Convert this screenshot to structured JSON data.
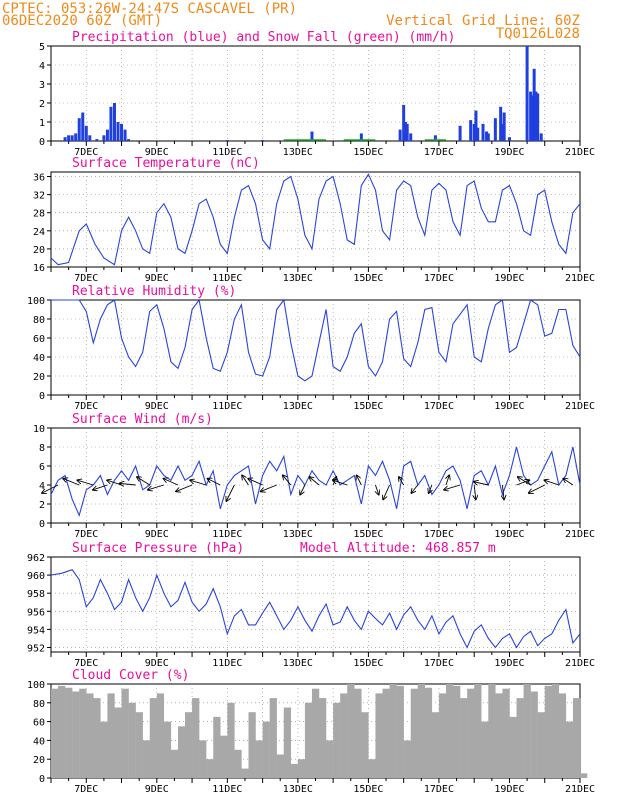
{
  "header": {
    "line1": "CPTEC:   053:26W-24:47S   CASCAVEL (PR)",
    "line2": "06DEC2020 60Z (GMT)",
    "grid_note": "Vertical Grid Line: 60Z",
    "code": "TQ0126L028"
  },
  "colors": {
    "header": "#f08a1a",
    "title": "#e8109c",
    "precip": "#1f3fe0",
    "snow": "#22aa22",
    "line": "#2a44dd",
    "cloud": "#a8a8a8",
    "wind_arrow": "#000000"
  },
  "x_axis": {
    "start_day": 6,
    "end_day": 21,
    "tick_labels": [
      "7DEC",
      "9DEC",
      "11DEC",
      "13DEC",
      "15DEC",
      "17DEC",
      "19DEC",
      "21DEC"
    ],
    "tick_days": [
      7,
      9,
      11,
      13,
      15,
      17,
      19,
      21
    ]
  },
  "chart_data": [
    {
      "type": "bar",
      "id": "precip",
      "title": "Precipitation (blue) and Snow Fall (green) (mm/h)",
      "ylim": [
        0,
        5
      ],
      "yticks": [
        0,
        1,
        2,
        3,
        4,
        5
      ],
      "x": [
        6.4,
        6.5,
        6.6,
        6.7,
        6.8,
        6.9,
        7.0,
        7.1,
        7.3,
        7.5,
        7.6,
        7.7,
        7.8,
        7.9,
        8.0,
        8.1,
        8.2,
        11.0,
        12.0,
        13.4,
        14.8,
        15.9,
        16.0,
        16.05,
        16.1,
        16.2,
        16.9,
        17.6,
        17.9,
        18.0,
        18.05,
        18.1,
        18.25,
        18.35,
        18.4,
        18.6,
        18.75,
        18.8,
        18.85,
        19.0,
        19.5,
        19.6,
        19.65,
        19.7,
        19.75,
        19.8,
        19.9
      ],
      "values": [
        0.2,
        0.3,
        0.3,
        0.4,
        1.2,
        1.5,
        0.8,
        0.3,
        0.1,
        0.3,
        0.6,
        1.8,
        2.0,
        1.0,
        0.9,
        0.6,
        0.1,
        0.05,
        0.05,
        0.5,
        0.4,
        0.6,
        1.9,
        1.0,
        0.9,
        0.4,
        0.3,
        0.8,
        1.1,
        0.9,
        1.6,
        0.7,
        0.9,
        0.5,
        0.4,
        1.2,
        1.8,
        0.9,
        1.5,
        0.2,
        5.0,
        2.6,
        2.4,
        3.8,
        2.6,
        2.5,
        0.4
      ],
      "snow": []
    },
    {
      "type": "line",
      "id": "temperature",
      "title": "Surface Temperature (nC)",
      "ylim": [
        16,
        37
      ],
      "yticks": [
        16,
        20,
        24,
        28,
        32,
        36
      ],
      "x": [
        6.0,
        6.2,
        6.5,
        6.8,
        7.0,
        7.25,
        7.5,
        7.8,
        8.0,
        8.2,
        8.4,
        8.6,
        8.8,
        9.0,
        9.2,
        9.4,
        9.6,
        9.8,
        10.0,
        10.2,
        10.4,
        10.6,
        10.8,
        11.0,
        11.2,
        11.4,
        11.6,
        11.8,
        12.0,
        12.2,
        12.4,
        12.6,
        12.8,
        13.0,
        13.2,
        13.4,
        13.6,
        13.8,
        14.0,
        14.2,
        14.4,
        14.6,
        14.8,
        15.0,
        15.2,
        15.4,
        15.6,
        15.8,
        16.0,
        16.2,
        16.4,
        16.6,
        16.8,
        17.0,
        17.2,
        17.4,
        17.6,
        17.8,
        18.0,
        18.2,
        18.4,
        18.6,
        18.8,
        19.0,
        19.2,
        19.4,
        19.6,
        19.8,
        20.0,
        20.2,
        20.4,
        20.6,
        20.8,
        21.0
      ],
      "values": [
        18,
        16.5,
        17,
        24,
        25.5,
        21,
        18,
        16.5,
        24,
        27,
        24,
        20,
        19,
        28,
        30,
        27,
        20,
        19,
        24,
        30,
        31,
        27,
        21,
        19,
        27,
        33,
        34,
        30,
        22,
        20,
        30,
        35,
        36,
        31,
        23,
        20,
        31,
        35,
        36,
        30,
        22,
        21,
        34,
        36.5,
        33,
        24,
        22,
        33,
        35,
        34,
        27,
        23,
        33,
        34.5,
        33,
        26,
        23,
        34,
        35,
        29,
        26,
        26,
        33,
        34,
        30,
        24,
        23,
        32,
        33,
        26,
        21,
        19,
        28,
        30
      ]
    },
    {
      "type": "line",
      "id": "humidity",
      "title": "Relative Humidity (%)",
      "ylim": [
        0,
        100
      ],
      "yticks": [
        0,
        20,
        40,
        60,
        80,
        100
      ],
      "x": [
        6.0,
        6.3,
        6.6,
        6.8,
        7.0,
        7.2,
        7.4,
        7.6,
        7.8,
        8.0,
        8.2,
        8.4,
        8.6,
        8.8,
        9.0,
        9.2,
        9.4,
        9.6,
        9.8,
        10.0,
        10.2,
        10.4,
        10.6,
        10.8,
        11.0,
        11.2,
        11.4,
        11.6,
        11.8,
        12.0,
        12.2,
        12.4,
        12.6,
        12.8,
        13.0,
        13.2,
        13.4,
        13.6,
        13.8,
        14.0,
        14.2,
        14.4,
        14.6,
        14.8,
        15.0,
        15.2,
        15.4,
        15.6,
        15.8,
        16.0,
        16.2,
        16.4,
        16.6,
        16.8,
        17.0,
        17.2,
        17.4,
        17.6,
        17.8,
        18.0,
        18.2,
        18.4,
        18.6,
        18.8,
        19.0,
        19.2,
        19.4,
        19.6,
        19.8,
        20.0,
        20.2,
        20.4,
        20.6,
        20.8,
        21.0
      ],
      "values": [
        100,
        100,
        100,
        100,
        88,
        55,
        80,
        95,
        100,
        60,
        40,
        30,
        45,
        88,
        95,
        70,
        35,
        28,
        50,
        90,
        100,
        60,
        28,
        25,
        45,
        80,
        95,
        45,
        22,
        20,
        40,
        90,
        100,
        55,
        20,
        15,
        20,
        55,
        90,
        30,
        25,
        40,
        65,
        75,
        30,
        20,
        35,
        80,
        88,
        38,
        30,
        55,
        90,
        92,
        45,
        35,
        75,
        85,
        95,
        40,
        35,
        70,
        95,
        100,
        45,
        50,
        75,
        100,
        95,
        62,
        65,
        90,
        90,
        52,
        40
      ]
    },
    {
      "type": "line",
      "id": "wind",
      "title": "Surface Wind (m/s)",
      "ylim": [
        0,
        10
      ],
      "yticks": [
        0,
        2,
        4,
        6,
        8,
        10
      ],
      "x": [
        6.0,
        6.2,
        6.4,
        6.6,
        6.8,
        7.0,
        7.2,
        7.4,
        7.6,
        7.8,
        8.0,
        8.2,
        8.4,
        8.6,
        8.8,
        9.0,
        9.2,
        9.4,
        9.6,
        9.8,
        10.0,
        10.2,
        10.4,
        10.6,
        10.8,
        11.0,
        11.2,
        11.4,
        11.6,
        11.8,
        12.0,
        12.2,
        12.4,
        12.6,
        12.8,
        13.0,
        13.2,
        13.4,
        13.6,
        13.8,
        14.0,
        14.2,
        14.4,
        14.6,
        14.8,
        15.0,
        15.2,
        15.4,
        15.6,
        15.8,
        16.0,
        16.2,
        16.4,
        16.6,
        16.8,
        17.0,
        17.2,
        17.4,
        17.6,
        17.8,
        18.0,
        18.2,
        18.4,
        18.6,
        18.8,
        19.0,
        19.2,
        19.4,
        19.6,
        19.8,
        20.0,
        20.2,
        20.4,
        20.6,
        20.8,
        21.0
      ],
      "values": [
        3,
        4.5,
        5,
        2.5,
        0.8,
        3.5,
        4,
        5,
        3,
        4.5,
        5.5,
        4.5,
        6,
        3.5,
        4,
        6,
        5,
        4.5,
        6,
        4.5,
        5,
        6.5,
        4,
        5.5,
        1.5,
        4,
        5,
        5.5,
        6,
        2,
        5,
        6.5,
        5.5,
        7,
        3,
        5,
        4,
        5.5,
        4.5,
        4,
        5.5,
        4,
        4.5,
        5,
        2,
        6,
        5,
        6.5,
        4.5,
        1.5,
        6,
        6.5,
        4,
        5,
        3,
        4,
        5.5,
        6,
        4.5,
        1.5,
        5,
        5.5,
        4,
        6,
        3,
        5,
        8,
        5,
        4,
        4.5,
        6,
        7.5,
        4,
        5,
        8,
        4
      ],
      "arrows": [
        {
          "x": 6.2,
          "u": -1.0,
          "v": -0.5
        },
        {
          "x": 6.8,
          "u": -1.0,
          "v": 0.4
        },
        {
          "x": 7.2,
          "u": -1.0,
          "v": 0.3
        },
        {
          "x": 7.6,
          "u": -0.9,
          "v": -0.3
        },
        {
          "x": 8.0,
          "u": -0.9,
          "v": 0.3
        },
        {
          "x": 8.4,
          "u": -1.0,
          "v": 0.1
        },
        {
          "x": 8.8,
          "u": -0.8,
          "v": 0.5
        },
        {
          "x": 9.2,
          "u": -1.0,
          "v": -0.3
        },
        {
          "x": 9.6,
          "u": -0.9,
          "v": 0.4
        },
        {
          "x": 10.0,
          "u": -1.0,
          "v": -0.4
        },
        {
          "x": 10.4,
          "u": -1.0,
          "v": 0.3
        },
        {
          "x": 10.8,
          "u": -0.8,
          "v": 0.4
        },
        {
          "x": 11.2,
          "u": -0.5,
          "v": -1.0
        },
        {
          "x": 11.6,
          "u": -0.4,
          "v": 0.6
        },
        {
          "x": 12.0,
          "u": -0.9,
          "v": 0.4
        },
        {
          "x": 12.4,
          "u": -1.0,
          "v": -0.4
        },
        {
          "x": 12.8,
          "u": -0.5,
          "v": 0.6
        },
        {
          "x": 13.2,
          "u": -0.3,
          "v": -0.6
        },
        {
          "x": 13.6,
          "u": -0.6,
          "v": 0.5
        },
        {
          "x": 14.0,
          "u": 0.2,
          "v": 0.5
        },
        {
          "x": 14.4,
          "u": -0.9,
          "v": 0.3
        },
        {
          "x": 14.8,
          "u": -0.3,
          "v": 0.6
        },
        {
          "x": 15.2,
          "u": 0.2,
          "v": -0.6
        },
        {
          "x": 15.6,
          "u": -0.4,
          "v": -0.9
        },
        {
          "x": 16.0,
          "u": -0.3,
          "v": 0.5
        },
        {
          "x": 16.4,
          "u": -0.4,
          "v": -0.5
        },
        {
          "x": 16.8,
          "u": -0.2,
          "v": -0.5
        },
        {
          "x": 17.2,
          "u": 0.2,
          "v": 0.6
        },
        {
          "x": 17.6,
          "u": -1.0,
          "v": -0.3
        },
        {
          "x": 18.0,
          "u": 0.1,
          "v": -0.9
        },
        {
          "x": 18.4,
          "u": -0.9,
          "v": 0.2
        },
        {
          "x": 18.8,
          "u": 0.1,
          "v": -0.9
        },
        {
          "x": 19.2,
          "u": 0.8,
          "v": 0.3
        },
        {
          "x": 19.6,
          "u": -0.8,
          "v": 0.5
        },
        {
          "x": 20.0,
          "u": -1.0,
          "v": -0.5
        },
        {
          "x": 20.4,
          "u": -0.9,
          "v": 0.3
        },
        {
          "x": 20.8,
          "u": -0.6,
          "v": 0.4
        }
      ]
    },
    {
      "type": "line",
      "id": "pressure",
      "title": "Surface Pressure (hPa)",
      "annotation": "Model Altitude: 468.857 m",
      "ylim": [
        951.5,
        962
      ],
      "yticks": [
        952,
        954,
        956,
        958,
        960,
        962
      ],
      "x": [
        6.0,
        6.3,
        6.6,
        6.8,
        7.0,
        7.2,
        7.4,
        7.6,
        7.8,
        8.0,
        8.2,
        8.4,
        8.6,
        8.8,
        9.0,
        9.2,
        9.4,
        9.6,
        9.8,
        10.0,
        10.2,
        10.4,
        10.6,
        10.8,
        11.0,
        11.2,
        11.4,
        11.6,
        11.8,
        12.0,
        12.2,
        12.4,
        12.6,
        12.8,
        13.0,
        13.2,
        13.4,
        13.6,
        13.8,
        14.0,
        14.2,
        14.4,
        14.6,
        14.8,
        15.0,
        15.2,
        15.4,
        15.6,
        15.8,
        16.0,
        16.2,
        16.4,
        16.6,
        16.8,
        17.0,
        17.2,
        17.4,
        17.6,
        17.8,
        18.0,
        18.2,
        18.4,
        18.6,
        18.8,
        19.0,
        19.2,
        19.4,
        19.6,
        19.8,
        20.0,
        20.2,
        20.4,
        20.6,
        20.8,
        21.0
      ],
      "values": [
        960,
        960.2,
        960.6,
        959.5,
        956.5,
        957.5,
        959.5,
        958,
        956.2,
        957,
        959.5,
        957.5,
        956,
        957.5,
        960,
        958,
        956.5,
        957.2,
        959.2,
        957,
        956,
        956.8,
        958.5,
        956.5,
        953.5,
        955.5,
        956.2,
        954.5,
        954.5,
        955.8,
        957,
        955.5,
        954,
        955,
        956.5,
        955,
        953.8,
        955.5,
        956.8,
        954.5,
        954.8,
        956.5,
        955,
        954,
        956,
        955.2,
        954.5,
        955.8,
        954,
        955.6,
        956.5,
        955,
        954,
        955.5,
        953.5,
        954.8,
        955.5,
        953.5,
        952,
        953.8,
        954.5,
        953,
        952,
        953,
        953.5,
        952,
        953.2,
        953.8,
        952.2,
        953,
        953.5,
        955,
        956.2,
        952.5,
        953.5
      ]
    },
    {
      "type": "area",
      "id": "cloud",
      "title": "Cloud Cover (%)",
      "ylim": [
        0,
        100
      ],
      "yticks": [
        0,
        20,
        40,
        60,
        80,
        100
      ],
      "x": [
        6.0,
        6.2,
        6.4,
        6.6,
        6.8,
        7.0,
        7.2,
        7.4,
        7.6,
        7.8,
        8.0,
        8.2,
        8.4,
        8.6,
        8.8,
        9.0,
        9.2,
        9.4,
        9.6,
        9.8,
        10.0,
        10.2,
        10.4,
        10.6,
        10.8,
        11.0,
        11.2,
        11.4,
        11.6,
        11.8,
        12.0,
        12.2,
        12.4,
        12.6,
        12.8,
        13.0,
        13.2,
        13.4,
        13.6,
        13.8,
        14.0,
        14.2,
        14.4,
        14.6,
        14.8,
        15.0,
        15.2,
        15.4,
        15.6,
        15.8,
        16.0,
        16.2,
        16.4,
        16.6,
        16.8,
        17.0,
        17.2,
        17.4,
        17.6,
        17.8,
        18.0,
        18.2,
        18.4,
        18.6,
        18.8,
        19.0,
        19.2,
        19.4,
        19.6,
        19.8,
        20.0,
        20.2,
        20.4,
        20.6,
        20.8,
        21.0
      ],
      "values": [
        95,
        98,
        96,
        92,
        95,
        90,
        85,
        60,
        90,
        75,
        95,
        80,
        70,
        40,
        85,
        90,
        60,
        30,
        55,
        70,
        85,
        40,
        20,
        65,
        45,
        80,
        30,
        10,
        70,
        40,
        60,
        85,
        25,
        75,
        15,
        20,
        80,
        95,
        85,
        40,
        80,
        90,
        100,
        95,
        70,
        20,
        90,
        95,
        100,
        98,
        40,
        95,
        100,
        96,
        70,
        90,
        100,
        98,
        85,
        95,
        100,
        60,
        100,
        90,
        95,
        65,
        85,
        100,
        92,
        70,
        98,
        100,
        90,
        60,
        85,
        5
      ]
    }
  ]
}
